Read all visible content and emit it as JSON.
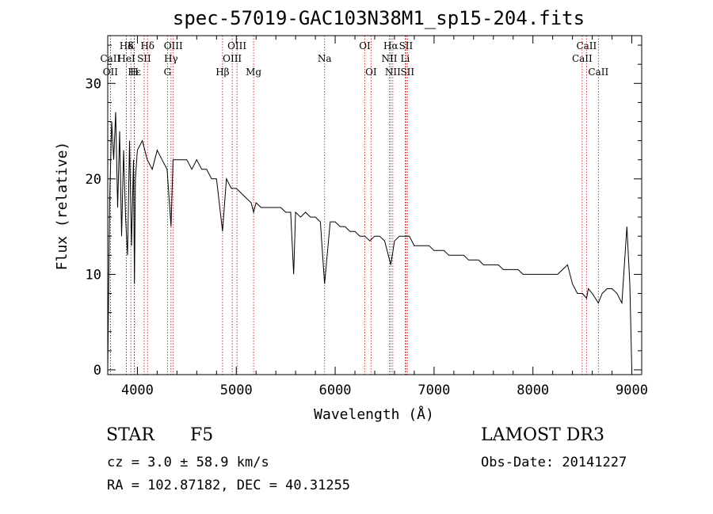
{
  "chart_data": {
    "type": "line",
    "title": "spec-57019-GAC103N38M1_sp15-204.fits",
    "xlabel": "Wavelength (Å)",
    "ylabel": "Flux (relative)",
    "xlim": [
      3700,
      9100
    ],
    "ylim": [
      -0.5,
      35
    ],
    "xticks": [
      4000,
      5000,
      6000,
      7000,
      8000,
      9000
    ],
    "yticks": [
      0,
      10,
      20,
      30
    ],
    "x": [
      3700,
      3720,
      3740,
      3760,
      3780,
      3800,
      3820,
      3840,
      3860,
      3880,
      3900,
      3920,
      3940,
      3960,
      3970,
      3980,
      4000,
      4050,
      4100,
      4150,
      4200,
      4250,
      4300,
      4340,
      4360,
      4400,
      4450,
      4500,
      4550,
      4600,
      4650,
      4700,
      4750,
      4800,
      4861,
      4900,
      4950,
      5000,
      5050,
      5100,
      5150,
      5175,
      5200,
      5250,
      5300,
      5350,
      5400,
      5450,
      5500,
      5550,
      5580,
      5600,
      5650,
      5700,
      5750,
      5800,
      5850,
      5893,
      5950,
      6000,
      6050,
      6100,
      6150,
      6200,
      6250,
      6300,
      6350,
      6400,
      6450,
      6500,
      6563,
      6600,
      6650,
      6700,
      6750,
      6800,
      6850,
      6900,
      6950,
      7000,
      7050,
      7100,
      7150,
      7200,
      7250,
      7300,
      7350,
      7400,
      7450,
      7500,
      7550,
      7600,
      7650,
      7700,
      7750,
      7800,
      7850,
      7900,
      7950,
      8000,
      8050,
      8100,
      8150,
      8200,
      8250,
      8300,
      8350,
      8400,
      8450,
      8500,
      8542,
      8560,
      8600,
      8662,
      8700,
      8750,
      8800,
      8850,
      8900,
      8950,
      8980,
      9000
    ],
    "y": [
      0,
      18,
      26,
      22,
      27,
      17,
      25,
      14,
      23,
      16,
      12,
      24,
      13,
      22,
      9,
      20,
      23,
      24,
      22,
      21,
      23,
      22,
      21,
      15,
      22,
      22,
      22,
      22,
      21,
      22,
      21,
      21,
      20,
      20,
      14.5,
      20,
      19,
      19,
      18.5,
      18,
      17.5,
      16.5,
      17.5,
      17,
      17,
      17,
      17,
      17,
      16.5,
      16.5,
      10,
      16.5,
      16,
      16.5,
      16,
      16,
      15.5,
      9,
      15.5,
      15.5,
      15,
      15,
      14.5,
      14.5,
      14,
      14,
      13.5,
      14,
      14,
      13.5,
      11,
      13.5,
      14,
      14,
      14,
      13,
      13,
      13,
      13,
      12.5,
      12.5,
      12.5,
      12,
      12,
      12,
      12,
      11.5,
      11.5,
      11.5,
      11,
      11,
      11,
      11,
      10.5,
      10.5,
      10.5,
      10.5,
      10,
      10,
      10,
      10,
      10,
      10,
      10,
      10,
      10.5,
      11,
      9,
      8,
      8,
      7.5,
      8.5,
      8,
      7,
      8,
      8.5,
      8.5,
      8,
      7,
      15,
      9,
      0
    ],
    "line_markers": [
      {
        "label": "Hδ",
        "wavelength": 3889,
        "row": 1
      },
      {
        "label": "CaII",
        "wavelength": 3727,
        "row": 2
      },
      {
        "label": "OII",
        "wavelength": 3727,
        "row": 3
      },
      {
        "label": "K",
        "wavelength": 3934,
        "row": 1
      },
      {
        "label": "HeI",
        "wavelength": 3889,
        "row": 2
      },
      {
        "label": "Hε",
        "wavelength": 3970,
        "row": 3
      },
      {
        "label": "SII",
        "wavelength": 4068,
        "row": 2
      },
      {
        "label": "H",
        "wavelength": 3968,
        "row": 3
      },
      {
        "label": "Hδ",
        "wavelength": 4102,
        "row": 1
      },
      {
        "label": "OIII",
        "wavelength": 4363,
        "row": 1
      },
      {
        "label": "Hγ",
        "wavelength": 4340,
        "row": 2
      },
      {
        "label": "G",
        "wavelength": 4304,
        "row": 3
      },
      {
        "label": "Hβ",
        "wavelength": 4861,
        "row": 3
      },
      {
        "label": "OIII",
        "wavelength": 5007,
        "row": 1
      },
      {
        "label": "OIII",
        "wavelength": 4959,
        "row": 2
      },
      {
        "label": "Mg",
        "wavelength": 5175,
        "row": 3
      },
      {
        "label": "Na",
        "wavelength": 5893,
        "row": 2
      },
      {
        "label": "OI",
        "wavelength": 6300,
        "row": 1
      },
      {
        "label": "OI",
        "wavelength": 6363,
        "row": 3
      },
      {
        "label": "Hα",
        "wavelength": 6563,
        "row": 1
      },
      {
        "label": "SII",
        "wavelength": 6716,
        "row": 1
      },
      {
        "label": "NII",
        "wavelength": 6548,
        "row": 2
      },
      {
        "label": "Li",
        "wavelength": 6708,
        "row": 2
      },
      {
        "label": "NII",
        "wavelength": 6583,
        "row": 3
      },
      {
        "label": "SII",
        "wavelength": 6731,
        "row": 3
      },
      {
        "label": "CaII",
        "wavelength": 8542,
        "row": 1
      },
      {
        "label": "CaII",
        "wavelength": 8498,
        "row": 2
      },
      {
        "label": "CaII",
        "wavelength": 8662,
        "row": 3
      }
    ],
    "marker_color": "#cc0000",
    "grid": false
  },
  "info": {
    "object_class": "STAR",
    "subclass": "F5",
    "survey": "LAMOST DR3",
    "cz": "cz = 3.0 ± 58.9 km/s",
    "obs_date": "Obs-Date: 20141227",
    "coords": "RA = 102.87182, DEC =  40.31255"
  }
}
